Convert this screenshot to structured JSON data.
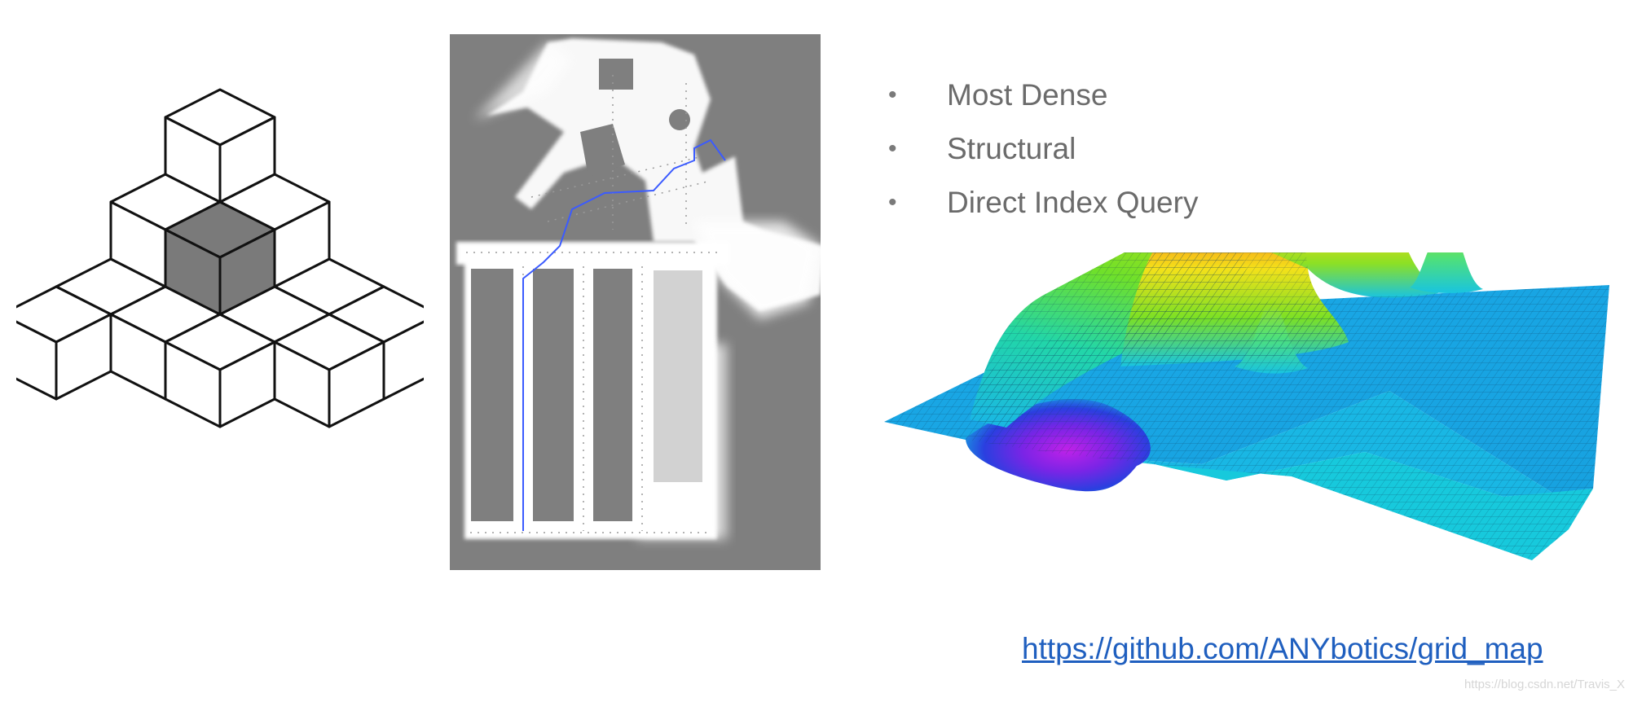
{
  "bullets": [
    {
      "label": "Most Dense"
    },
    {
      "label": "Structural"
    },
    {
      "label": "Direct Index Query"
    }
  ],
  "bullet_symbol": "•",
  "link": {
    "text": "https://github.com/ANYbotics/grid_map"
  },
  "watermark": "https://blog.csdn.net/Travis_X",
  "icons": {
    "voxel": "isometric-voxel-cubes-icon",
    "map": "occupancy-grid-map-image",
    "surface": "elevation-surface-plot-image"
  },
  "colors": {
    "voxel_highlight": "#7a7a7a",
    "map_background": "#7f7f7f",
    "map_free": "#ffffff",
    "path": "#3b5bff",
    "link": "#1f5fbf",
    "text": "#6b6b6b"
  }
}
